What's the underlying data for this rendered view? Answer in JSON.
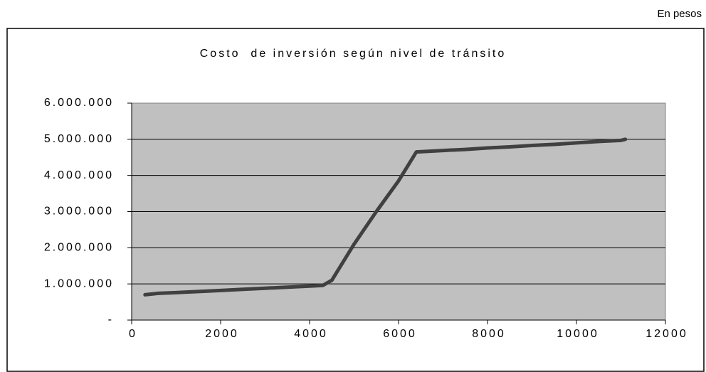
{
  "chart_data": {
    "type": "line",
    "title": "Costo  de inversión según nivel de tránsito",
    "annotation": "En pesos",
    "x": [
      300,
      600,
      1000,
      1500,
      2000,
      2500,
      3000,
      3500,
      4000,
      4300,
      4500,
      4700,
      5000,
      5500,
      6000,
      6400,
      7000,
      7500,
      8000,
      8500,
      9000,
      9500,
      10000,
      10500,
      11000,
      11100
    ],
    "values": [
      700000,
      740000,
      760000,
      790000,
      820000,
      850000,
      880000,
      910000,
      940000,
      960000,
      1100000,
      1500000,
      2100000,
      3000000,
      3850000,
      4650000,
      4690000,
      4720000,
      4760000,
      4790000,
      4830000,
      4860000,
      4900000,
      4940000,
      4970000,
      5000000
    ],
    "color": "#404040",
    "xlim": [
      0,
      12000
    ],
    "xticks": [
      0,
      2000,
      4000,
      6000,
      8000,
      10000,
      12000
    ],
    "ylim": [
      0,
      6000000
    ],
    "yticks": [
      {
        "value": 0,
        "label": "-"
      },
      {
        "value": 1000000,
        "label": "1.000.000"
      },
      {
        "value": 2000000,
        "label": "2.000.000"
      },
      {
        "value": 3000000,
        "label": "3.000.000"
      },
      {
        "value": 4000000,
        "label": "4.000.000"
      },
      {
        "value": 5000000,
        "label": "5.000.000"
      },
      {
        "value": 6000000,
        "label": "6.000.000"
      }
    ],
    "grid": true
  }
}
